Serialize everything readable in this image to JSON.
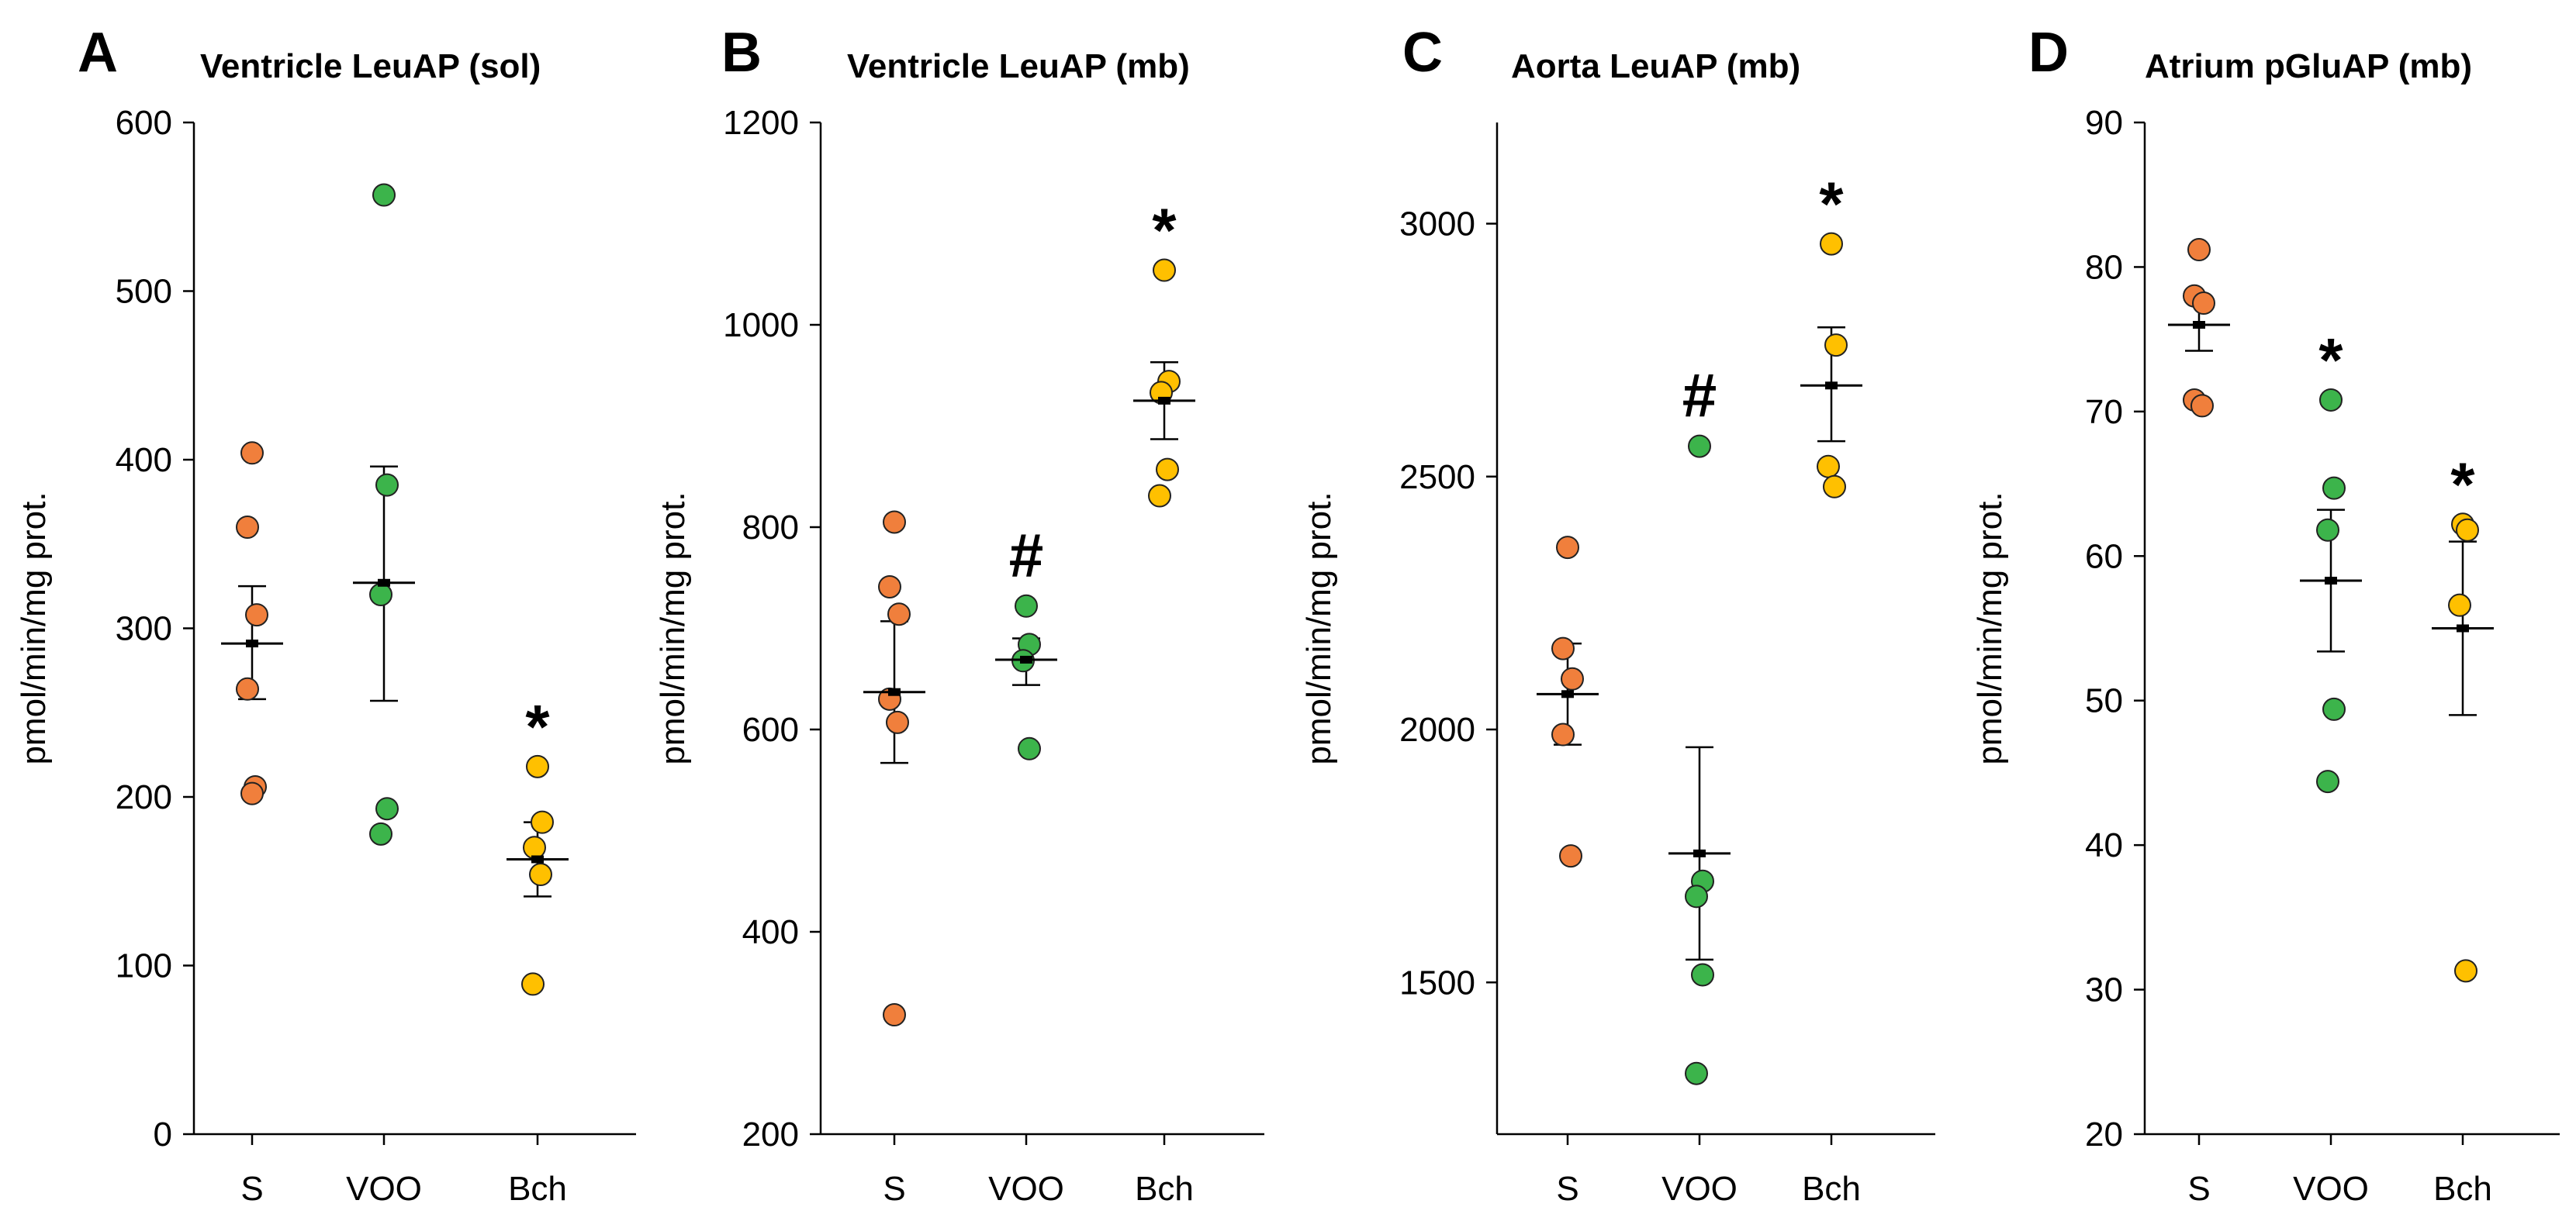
{
  "colors": {
    "S": "#f07f3c",
    "VOO": "#3cb44b",
    "Bch": "#ffc000"
  },
  "chart_data": [
    {
      "letter": "A",
      "type": "scatter",
      "title": "Ventricle LeuAP (sol)",
      "ylabel": "pmol/min/mg  prot.",
      "categories": [
        "S",
        "VOO",
        "Bch"
      ],
      "ylim": [
        0,
        600
      ],
      "yticks": [
        0,
        100,
        200,
        300,
        400,
        500,
        600
      ],
      "series": [
        {
          "name": "S",
          "points": [
            404,
            360,
            308,
            264,
            206,
            202
          ],
          "mean": 291,
          "sem_low": 258,
          "sem_high": 325,
          "mark": ""
        },
        {
          "name": "VOO",
          "points": [
            557,
            385,
            320,
            193,
            178
          ],
          "mean": 327,
          "sem_low": 257,
          "sem_high": 396,
          "mark": ""
        },
        {
          "name": "Bch",
          "points": [
            218,
            185,
            170,
            154,
            89
          ],
          "mean": 163,
          "sem_low": 141,
          "sem_high": 185,
          "mark": "*"
        }
      ]
    },
    {
      "letter": "B",
      "type": "scatter",
      "title": "Ventricle LeuAP (mb)",
      "ylabel": "pmol/min/mg  prot.",
      "categories": [
        "S",
        "VOO",
        "Bch"
      ],
      "ylim": [
        200,
        1200
      ],
      "yticks": [
        200,
        400,
        600,
        800,
        1000,
        1200
      ],
      "series": [
        {
          "name": "S",
          "points": [
            805,
            741,
            714,
            630,
            607,
            318
          ],
          "mean": 637,
          "sem_low": 567,
          "sem_high": 707,
          "mark": ""
        },
        {
          "name": "VOO",
          "points": [
            722,
            684,
            668,
            581
          ],
          "mean": 669,
          "sem_low": 644,
          "sem_high": 690,
          "mark": "#"
        },
        {
          "name": "Bch",
          "points": [
            1054,
            944,
            933,
            857,
            831
          ],
          "mean": 925,
          "sem_low": 887,
          "sem_high": 963,
          "mark": "*"
        }
      ]
    },
    {
      "letter": "C",
      "type": "scatter",
      "title": "Aorta LeuAP (mb)",
      "ylabel": "pmol/min/mg  prot.",
      "categories": [
        "S",
        "VOO",
        "Bch"
      ],
      "ylim": [
        1200,
        3200
      ],
      "yticks": [
        1500,
        2000,
        2500,
        3000
      ],
      "series": [
        {
          "name": "S",
          "points": [
            2360,
            2160,
            2100,
            1990,
            1750
          ],
          "mean": 2070,
          "sem_low": 1970,
          "sem_high": 2170,
          "mark": ""
        },
        {
          "name": "VOO",
          "points": [
            2560,
            1700,
            1670,
            1515,
            1320
          ],
          "mean": 1755,
          "sem_low": 1545,
          "sem_high": 1965,
          "mark": "#"
        },
        {
          "name": "Bch",
          "points": [
            2960,
            2760,
            2520,
            2480
          ],
          "mean": 2680,
          "sem_low": 2570,
          "sem_high": 2795,
          "mark": "*"
        }
      ]
    },
    {
      "letter": "D",
      "type": "scatter",
      "title": "Atrium pGluAP (mb)",
      "ylabel": "pmol/min/mg  prot.",
      "categories": [
        "S",
        "VOO",
        "Bch"
      ],
      "ylim": [
        20,
        90
      ],
      "yticks": [
        20,
        30,
        40,
        50,
        60,
        70,
        80,
        90
      ],
      "series": [
        {
          "name": "S",
          "points": [
            81.2,
            78.0,
            77.5,
            70.8,
            70.4
          ],
          "mean": 76.0,
          "sem_low": 74.2,
          "sem_high": 77.8,
          "mark": ""
        },
        {
          "name": "VOO",
          "points": [
            70.8,
            64.7,
            61.8,
            49.4,
            44.4
          ],
          "mean": 58.3,
          "sem_low": 53.4,
          "sem_high": 63.2,
          "mark": "*"
        },
        {
          "name": "Bch",
          "points": [
            62.2,
            61.8,
            56.6,
            31.3
          ],
          "mean": 55.0,
          "sem_low": 49.0,
          "sem_high": 61.0,
          "mark": "*"
        }
      ]
    }
  ]
}
